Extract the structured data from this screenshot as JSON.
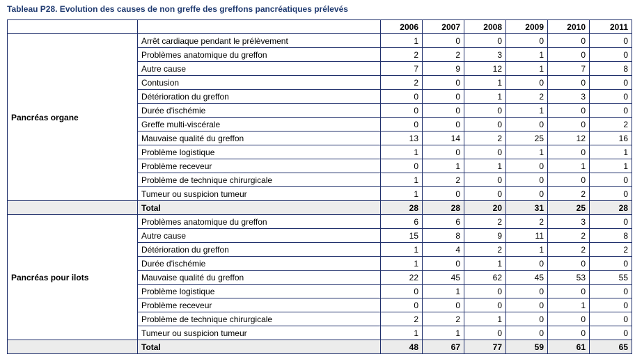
{
  "title": "Tableau P28. Evolution des causes de non greffe des greffons pancréatiques prélevés",
  "years": [
    "2006",
    "2007",
    "2008",
    "2009",
    "2010",
    "2011"
  ],
  "groups": [
    {
      "name": "Pancréas organe",
      "rows": [
        {
          "cause": "Arrêt cardiaque pendant le prélèvement",
          "values": [
            "1",
            "0",
            "0",
            "0",
            "0",
            "0"
          ]
        },
        {
          "cause": "Problèmes anatomique du greffon",
          "values": [
            "2",
            "2",
            "3",
            "1",
            "0",
            "0"
          ]
        },
        {
          "cause": "Autre cause",
          "values": [
            "7",
            "9",
            "12",
            "1",
            "7",
            "8"
          ]
        },
        {
          "cause": "Contusion",
          "values": [
            "2",
            "0",
            "1",
            "0",
            "0",
            "0"
          ]
        },
        {
          "cause": "Détérioration du greffon",
          "values": [
            "0",
            "0",
            "1",
            "2",
            "3",
            "0"
          ]
        },
        {
          "cause": "Durée d'ischémie",
          "values": [
            "0",
            "0",
            "0",
            "1",
            "0",
            "0"
          ]
        },
        {
          "cause": "Greffe multi-viscérale",
          "values": [
            "0",
            "0",
            "0",
            "0",
            "0",
            "2"
          ]
        },
        {
          "cause": "Mauvaise qualité du greffon",
          "values": [
            "13",
            "14",
            "2",
            "25",
            "12",
            "16"
          ]
        },
        {
          "cause": "Problème logistique",
          "values": [
            "1",
            "0",
            "0",
            "1",
            "0",
            "1"
          ]
        },
        {
          "cause": "Problème receveur",
          "values": [
            "0",
            "1",
            "1",
            "0",
            "1",
            "1"
          ]
        },
        {
          "cause": "Problème de technique chirurgicale",
          "values": [
            "1",
            "2",
            "0",
            "0",
            "0",
            "0"
          ]
        },
        {
          "cause": "Tumeur ou suspicion tumeur",
          "values": [
            "1",
            "0",
            "0",
            "0",
            "2",
            "0"
          ]
        }
      ],
      "total_label": "Total",
      "totals": [
        "28",
        "28",
        "20",
        "31",
        "25",
        "28"
      ]
    },
    {
      "name": "Pancréas pour ilots",
      "rows": [
        {
          "cause": "Problèmes anatomique du greffon",
          "values": [
            "6",
            "6",
            "2",
            "2",
            "3",
            "0"
          ]
        },
        {
          "cause": "Autre cause",
          "values": [
            "15",
            "8",
            "9",
            "11",
            "2",
            "8"
          ]
        },
        {
          "cause": "Détérioration du greffon",
          "values": [
            "1",
            "4",
            "2",
            "1",
            "2",
            "2"
          ]
        },
        {
          "cause": "Durée d'ischémie",
          "values": [
            "1",
            "0",
            "1",
            "0",
            "0",
            "0"
          ]
        },
        {
          "cause": "Mauvaise qualité du greffon",
          "values": [
            "22",
            "45",
            "62",
            "45",
            "53",
            "55"
          ]
        },
        {
          "cause": "Problème logistique",
          "values": [
            "0",
            "1",
            "0",
            "0",
            "0",
            "0"
          ]
        },
        {
          "cause": "Problème receveur",
          "values": [
            "0",
            "0",
            "0",
            "0",
            "1",
            "0"
          ]
        },
        {
          "cause": "Problème de technique chirurgicale",
          "values": [
            "2",
            "2",
            "1",
            "0",
            "0",
            "0"
          ]
        },
        {
          "cause": "Tumeur ou suspicion tumeur",
          "values": [
            "1",
            "1",
            "0",
            "0",
            "0",
            "0"
          ]
        }
      ],
      "total_label": "Total",
      "totals": [
        "48",
        "67",
        "77",
        "59",
        "61",
        "65"
      ]
    }
  ]
}
